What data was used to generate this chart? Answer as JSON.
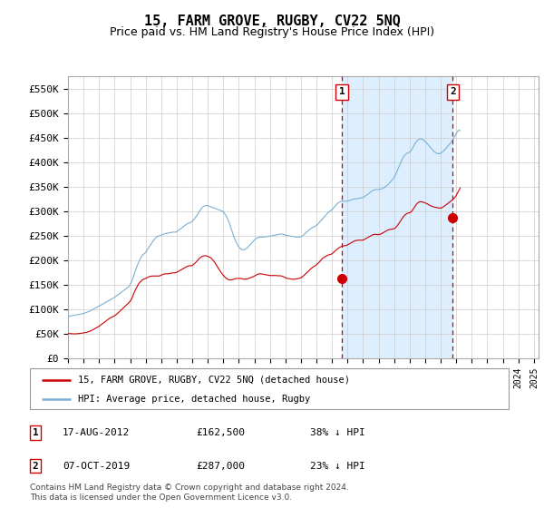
{
  "title": "15, FARM GROVE, RUGBY, CV22 5NQ",
  "subtitle": "Price paid vs. HM Land Registry's House Price Index (HPI)",
  "title_fontsize": 11,
  "subtitle_fontsize": 9,
  "ylabel_ticks": [
    "£0",
    "£50K",
    "£100K",
    "£150K",
    "£200K",
    "£250K",
    "£300K",
    "£350K",
    "£400K",
    "£450K",
    "£500K",
    "£550K"
  ],
  "ylim": [
    0,
    575000
  ],
  "xlim_start": 1995.0,
  "xlim_end": 2025.3,
  "red_line_color": "#cc0000",
  "blue_line_color": "#7ab0d4",
  "marker1_x": 2012.63,
  "marker1_y": 162500,
  "marker2_x": 2019.77,
  "marker2_y": 287000,
  "vline_color": "#cc0000",
  "shade_color": "#ddeeff",
  "legend_label1": "15, FARM GROVE, RUGBY, CV22 5NQ (detached house)",
  "legend_label2": "HPI: Average price, detached house, Rugby",
  "footnote": "Contains HM Land Registry data © Crown copyright and database right 2024.\nThis data is licensed under the Open Government Licence v3.0.",
  "table_rows": [
    {
      "num": "1",
      "date": "17-AUG-2012",
      "price": "£162,500",
      "pct": "38% ↓ HPI"
    },
    {
      "num": "2",
      "date": "07-OCT-2019",
      "price": "£287,000",
      "pct": "23% ↓ HPI"
    }
  ],
  "hpi_monthly": [
    85000,
    85500,
    86000,
    86500,
    87000,
    87500,
    88000,
    88500,
    89000,
    89500,
    90000,
    90500,
    91000,
    92000,
    93000,
    94000,
    95000,
    96000,
    97500,
    99000,
    100500,
    102000,
    103500,
    105000,
    106000,
    107500,
    109000,
    110500,
    112000,
    113500,
    115000,
    116500,
    118000,
    119500,
    121000,
    122500,
    124000,
    126000,
    128000,
    130000,
    132000,
    134000,
    136000,
    138000,
    140000,
    142000,
    144000,
    146000,
    150000,
    155000,
    162000,
    170000,
    178000,
    185000,
    192000,
    198000,
    204000,
    208000,
    211000,
    213000,
    216000,
    220000,
    224000,
    228000,
    232000,
    236000,
    240000,
    243000,
    246000,
    248000,
    249000,
    250000,
    251000,
    252000,
    253000,
    254000,
    254500,
    255000,
    255500,
    256000,
    256500,
    257000,
    257000,
    257000,
    258000,
    260000,
    262000,
    264000,
    266000,
    268000,
    270000,
    272000,
    274000,
    275000,
    276000,
    277000,
    279000,
    282000,
    285000,
    289000,
    293000,
    297000,
    301000,
    305000,
    308000,
    310000,
    311000,
    311000,
    311000,
    310000,
    309000,
    308000,
    307000,
    306000,
    305000,
    304000,
    303000,
    302000,
    301000,
    300000,
    298000,
    295000,
    291000,
    286000,
    280000,
    273000,
    265000,
    257000,
    249000,
    242000,
    236000,
    231000,
    227000,
    224000,
    222000,
    221000,
    221000,
    222000,
    224000,
    226000,
    229000,
    232000,
    235000,
    238000,
    241000,
    243000,
    245000,
    246000,
    247000,
    247000,
    247000,
    247000,
    247000,
    247500,
    248000,
    248500,
    249000,
    249500,
    250000,
    250500,
    251000,
    251500,
    252000,
    252500,
    253000,
    253000,
    253000,
    252000,
    251000,
    250500,
    250000,
    249500,
    249000,
    248500,
    248000,
    247500,
    247000,
    247000,
    247000,
    247000,
    247500,
    249000,
    251000,
    253500,
    256000,
    258500,
    261000,
    263000,
    265000,
    266500,
    268000,
    269000,
    271000,
    273000,
    276000,
    279000,
    282000,
    285000,
    288000,
    291000,
    294000,
    296500,
    299000,
    301000,
    303000,
    306000,
    309000,
    312000,
    315000,
    317000,
    318500,
    319500,
    320000,
    320000,
    320000,
    320000,
    320500,
    321000,
    322000,
    323000,
    324000,
    324500,
    325000,
    325000,
    325500,
    326000,
    326500,
    327000,
    328000,
    329500,
    331000,
    333000,
    335000,
    337000,
    339000,
    341000,
    342500,
    343500,
    344000,
    344000,
    344000,
    344500,
    345000,
    346000,
    347500,
    349000,
    351000,
    353500,
    356000,
    359000,
    362000,
    365000,
    369000,
    374000,
    380000,
    386000,
    392000,
    398000,
    404000,
    409000,
    413000,
    416000,
    418000,
    419000,
    420000,
    423000,
    427000,
    432000,
    437000,
    441000,
    444000,
    446000,
    447000,
    447000,
    446000,
    444000,
    442000,
    439000,
    436000,
    433000,
    430000,
    427000,
    424000,
    421000,
    419000,
    418000,
    417000,
    417000,
    418000,
    420000,
    422000,
    425000,
    428000,
    431000,
    434000,
    437000,
    440000,
    444000,
    448000,
    453000,
    458000,
    462000,
    465000,
    464000
  ],
  "pp_monthly": [
    50000,
    50200,
    50000,
    49800,
    49600,
    49500,
    49600,
    49800,
    50000,
    50300,
    50600,
    51000,
    51500,
    52000,
    52500,
    53200,
    54000,
    55000,
    56200,
    57500,
    59000,
    60500,
    62000,
    63500,
    65000,
    67000,
    69000,
    71000,
    73000,
    75000,
    77000,
    79000,
    81000,
    82500,
    84000,
    85000,
    86500,
    88500,
    90500,
    93000,
    95500,
    98000,
    100500,
    103000,
    105500,
    108000,
    110500,
    113000,
    116000,
    120000,
    126000,
    133000,
    139000,
    144000,
    149000,
    153000,
    156000,
    158500,
    160500,
    161500,
    162500,
    164000,
    165500,
    166500,
    167000,
    167500,
    167500,
    167500,
    167500,
    167500,
    167500,
    168000,
    169000,
    170500,
    171500,
    172000,
    172000,
    172000,
    172500,
    173000,
    173500,
    174000,
    174000,
    174000,
    175000,
    176500,
    178000,
    179500,
    181000,
    182500,
    184000,
    185500,
    187000,
    188000,
    188500,
    188500,
    189000,
    191000,
    193500,
    196000,
    199000,
    202000,
    204500,
    206500,
    208000,
    208500,
    209000,
    208500,
    207500,
    206500,
    205000,
    203000,
    200000,
    196500,
    192500,
    188500,
    184000,
    180000,
    176000,
    172500,
    169000,
    166000,
    163500,
    161500,
    160000,
    159500,
    159500,
    160000,
    161000,
    162000,
    162500,
    162500,
    162500,
    162500,
    162500,
    161500,
    161000,
    161000,
    161500,
    162000,
    163000,
    164000,
    165000,
    166000,
    167500,
    169000,
    170500,
    171500,
    172000,
    172000,
    171500,
    171000,
    170500,
    170000,
    169500,
    169000,
    168500,
    168500,
    168500,
    168500,
    168500,
    168500,
    168000,
    168000,
    168000,
    167500,
    166500,
    165500,
    164000,
    163000,
    162500,
    162000,
    161500,
    161000,
    161000,
    161000,
    161500,
    162000,
    162500,
    163000,
    164000,
    166000,
    168000,
    170500,
    173000,
    175500,
    178000,
    180500,
    183000,
    185000,
    187000,
    188500,
    190500,
    193000,
    195500,
    198500,
    201500,
    204000,
    206000,
    207500,
    209000,
    210000,
    211000,
    211500,
    213000,
    215000,
    217500,
    220000,
    222500,
    224500,
    226000,
    227500,
    228500,
    229000,
    229500,
    230000,
    231000,
    232500,
    234000,
    235500,
    237000,
    238500,
    239500,
    240000,
    240500,
    240500,
    240500,
    240500,
    241000,
    242000,
    243500,
    245000,
    246500,
    248000,
    249500,
    251000,
    252000,
    252500,
    252500,
    252000,
    252000,
    252500,
    253500,
    255000,
    256500,
    258000,
    259500,
    261000,
    262000,
    262500,
    263000,
    263500,
    264000,
    266000,
    268500,
    272000,
    276000,
    280000,
    284000,
    288000,
    291000,
    293500,
    295000,
    296000,
    296500,
    298000,
    301000,
    305000,
    309000,
    313000,
    316000,
    318000,
    319000,
    319000,
    318500,
    317500,
    316500,
    315500,
    314000,
    312500,
    311000,
    310000,
    309000,
    308000,
    307500,
    307000,
    306500,
    306000,
    306000,
    307000,
    308500,
    310500,
    312500,
    314500,
    316500,
    318500,
    320500,
    322500,
    325000,
    328000,
    332000,
    337000,
    342000,
    347000
  ]
}
